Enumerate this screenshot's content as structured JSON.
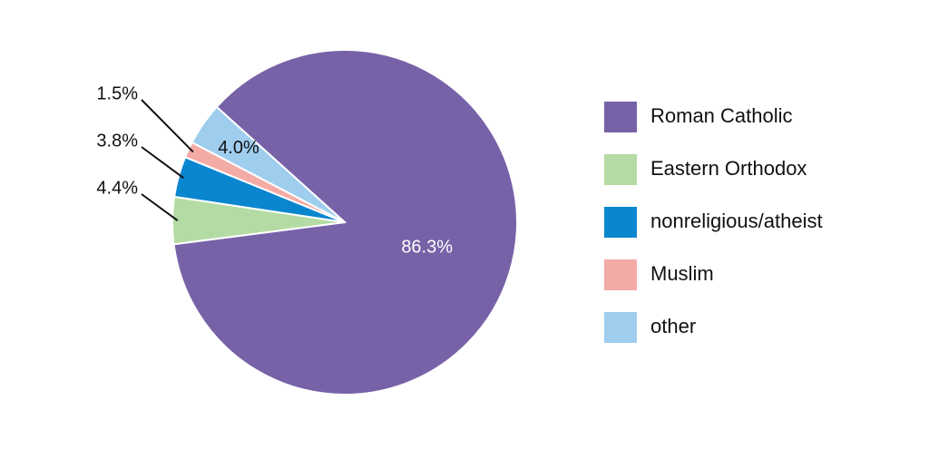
{
  "chart_data": {
    "type": "pie",
    "categories": [
      "Roman Catholic",
      "Eastern Orthodox",
      "nonreligious/atheist",
      "Muslim",
      "other"
    ],
    "values": [
      86.3,
      4.4,
      3.8,
      1.5,
      4.0
    ],
    "value_labels": [
      "86.3%",
      "4.4%",
      "3.8%",
      "1.5%",
      "4.0%"
    ],
    "colors": [
      "#7762a8",
      "#b4dba4",
      "#0a86cf",
      "#f4aba6",
      "#9fcdee"
    ],
    "legend": "right"
  }
}
